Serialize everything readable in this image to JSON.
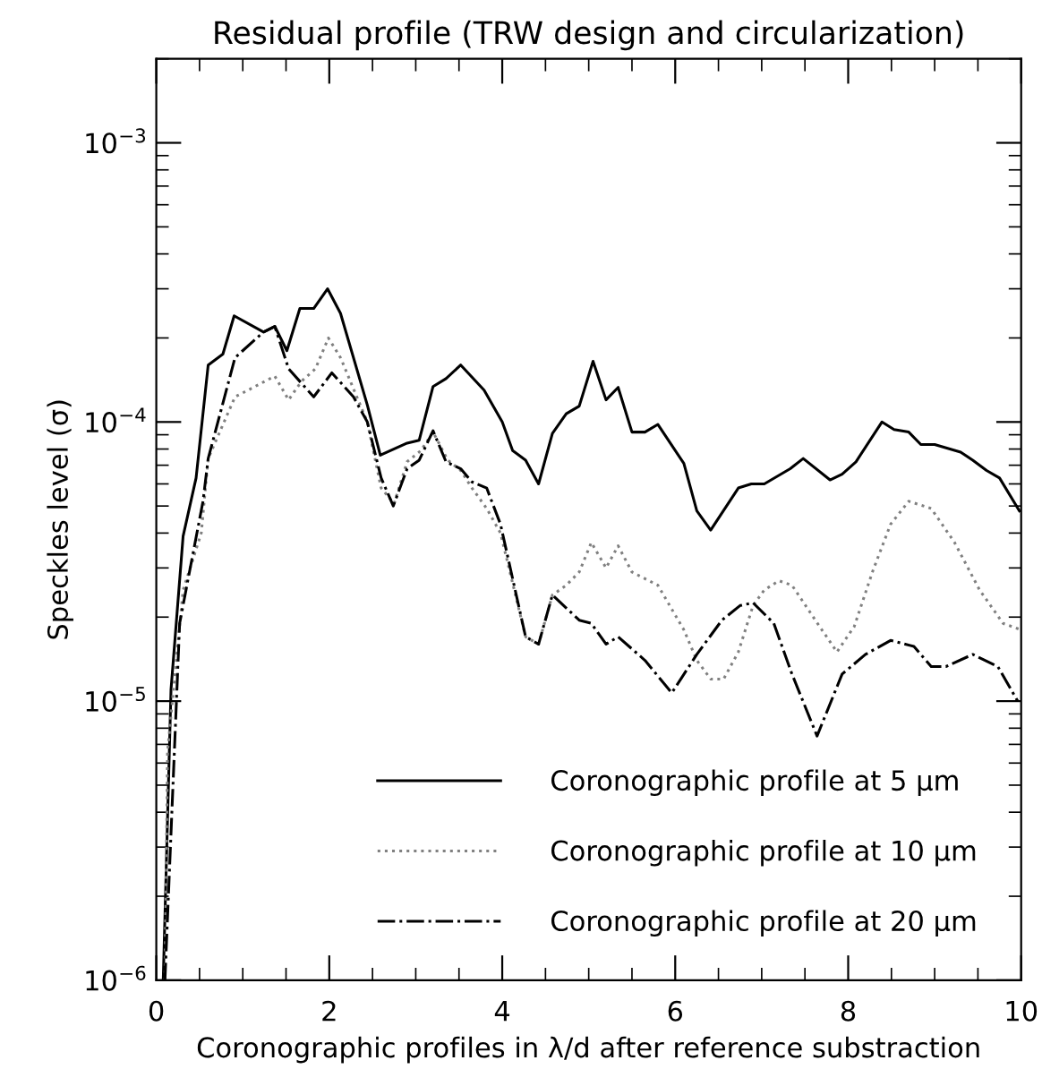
{
  "chart_data": {
    "type": "line",
    "title": "Residual profile (TRW design and circularization)",
    "xlabel": "Coronographic profiles in λ/d after reference substraction",
    "ylabel": "Speckles level (σ)",
    "log": "y",
    "grid": false,
    "legend": "bottom right",
    "marker": "none",
    "xlim": [
      0,
      10
    ],
    "xticks": [
      0,
      2,
      4,
      6,
      8,
      10
    ],
    "ylim": [
      1e-06,
      0.002
    ],
    "yticks": [
      {
        "value": 1e-06,
        "label": "10$^{−6}$"
      },
      {
        "value": 1e-05,
        "label": "10$^{−5}$"
      },
      {
        "value": 0.0001,
        "label": "10$^{−4}$"
      },
      {
        "value": 0.001,
        "label": "10$^{−3}$"
      }
    ],
    "series": [
      {
        "name": "Coronographic profile at 5 μm",
        "color": "#000000",
        "line_style": "solid",
        "x": [
          0.08,
          0.17,
          0.31,
          0.46,
          0.6,
          0.77,
          0.9,
          1.24,
          1.37,
          1.51,
          1.66,
          1.82,
          1.98,
          2.13,
          2.44,
          2.59,
          2.9,
          3.04,
          3.2,
          3.35,
          3.52,
          3.79,
          4.0,
          4.12,
          4.27,
          4.42,
          4.58,
          4.74,
          4.89,
          5.05,
          5.2,
          5.34,
          5.5,
          5.65,
          5.8,
          6.1,
          6.25,
          6.41,
          6.73,
          6.88,
          7.03,
          7.33,
          7.48,
          7.79,
          7.93,
          8.09,
          8.39,
          8.53,
          8.7,
          8.84,
          9.0,
          9.3,
          9.44,
          9.6,
          9.75,
          9.98
        ],
        "values": [
          1e-06,
          1.1e-05,
          3.9e-05,
          6.3e-05,
          0.00016,
          0.000175,
          0.00024,
          0.00021,
          0.00022,
          0.00018,
          0.000255,
          0.000255,
          0.0003,
          0.000245,
          0.000115,
          7.6e-05,
          8.4e-05,
          8.6e-05,
          0.000134,
          0.000143,
          0.00016,
          0.00013,
          0.0001,
          7.9e-05,
          7.3e-05,
          6e-05,
          9.1e-05,
          0.000107,
          0.000114,
          0.000165,
          0.00012,
          0.000133,
          9.2e-05,
          9.2e-05,
          9.8e-05,
          7.1e-05,
          4.8e-05,
          4.1e-05,
          5.8e-05,
          6e-05,
          6e-05,
          6.8e-05,
          7.4e-05,
          6.2e-05,
          6.5e-05,
          7.2e-05,
          0.0001,
          9.4e-05,
          9.2e-05,
          8.3e-05,
          8.3e-05,
          7.8e-05,
          7.3e-05,
          6.7e-05,
          6.3e-05,
          4.8e-05
        ]
      },
      {
        "name": "Coronographic profile at 10 μm",
        "color": "#808080",
        "line_style": "dotted",
        "x": [
          0.1,
          0.13,
          0.31,
          0.52,
          0.6,
          0.91,
          1.06,
          1.37,
          1.53,
          1.68,
          1.84,
          1.99,
          2.13,
          2.44,
          2.6,
          2.75,
          2.9,
          3.06,
          3.2,
          3.37,
          3.52,
          3.65,
          3.82,
          3.98,
          4.27,
          4.42,
          4.58,
          4.74,
          4.89,
          5.03,
          5.2,
          5.34,
          5.5,
          5.8,
          6.1,
          6.25,
          6.41,
          6.56,
          6.73,
          6.9,
          7.03,
          7.2,
          7.35,
          7.62,
          7.87,
          8.07,
          8.28,
          8.49,
          8.7,
          8.96,
          9.23,
          9.52,
          9.79,
          10.0
        ],
        "values": [
          1e-06,
          6.6e-06,
          2.5e-05,
          4e-05,
          7.4e-05,
          0.000123,
          0.00013,
          0.000146,
          0.00012,
          0.00014,
          0.000155,
          0.0002,
          0.00017,
          0.0001,
          5.8e-05,
          5.1e-05,
          7.2e-05,
          7.9e-05,
          9.2e-05,
          7.3e-05,
          6.7e-05,
          5.8e-05,
          4.9e-05,
          4e-05,
          1.7e-05,
          1.6e-05,
          2.4e-05,
          2.6e-05,
          2.9e-05,
          3.7e-05,
          3e-05,
          3.6e-05,
          2.9e-05,
          2.6e-05,
          1.8e-05,
          1.4e-05,
          1.2e-05,
          1.2e-05,
          1.5e-05,
          2.2e-05,
          2.5e-05,
          2.7e-05,
          2.6e-05,
          1.95e-05,
          1.5e-05,
          1.85e-05,
          2.9e-05,
          4.3e-05,
          5.2e-05,
          4.9e-05,
          3.7e-05,
          2.5e-05,
          1.9e-05,
          1.8e-05
        ]
      },
      {
        "name": "Coronographic profile at 20 μm",
        "color": "#000000",
        "line_style": "dashdot",
        "x": [
          0.1,
          0.27,
          0.54,
          0.6,
          0.91,
          1.24,
          1.37,
          1.53,
          1.82,
          2.03,
          2.28,
          2.44,
          2.6,
          2.74,
          2.9,
          3.04,
          3.2,
          3.35,
          3.52,
          3.65,
          3.82,
          3.98,
          4.27,
          4.42,
          4.58,
          4.89,
          5.03,
          5.2,
          5.34,
          5.65,
          5.96,
          6.25,
          6.54,
          6.75,
          6.9,
          7.14,
          7.35,
          7.64,
          7.93,
          8.2,
          8.49,
          8.76,
          8.96,
          9.13,
          9.44,
          9.73,
          9.96
        ],
        "values": [
          1e-06,
          1.9e-05,
          5.2e-05,
          7.4e-05,
          0.00017,
          0.00021,
          0.00022,
          0.000155,
          0.000123,
          0.00015,
          0.000123,
          0.0001,
          6.3e-05,
          5e-05,
          6.8e-05,
          7.3e-05,
          9.3e-05,
          7.2e-05,
          6.8e-05,
          6.1e-05,
          5.8e-05,
          4.3e-05,
          1.7e-05,
          1.6e-05,
          2.4e-05,
          1.95e-05,
          1.9e-05,
          1.6e-05,
          1.7e-05,
          1.4e-05,
          1.07e-05,
          1.47e-05,
          1.95e-05,
          2.2e-05,
          2.25e-05,
          1.9e-05,
          1.25e-05,
          7.5e-06,
          1.25e-05,
          1.47e-05,
          1.65e-05,
          1.57e-05,
          1.33e-05,
          1.33e-05,
          1.47e-05,
          1.33e-05,
          1e-05
        ]
      }
    ]
  }
}
